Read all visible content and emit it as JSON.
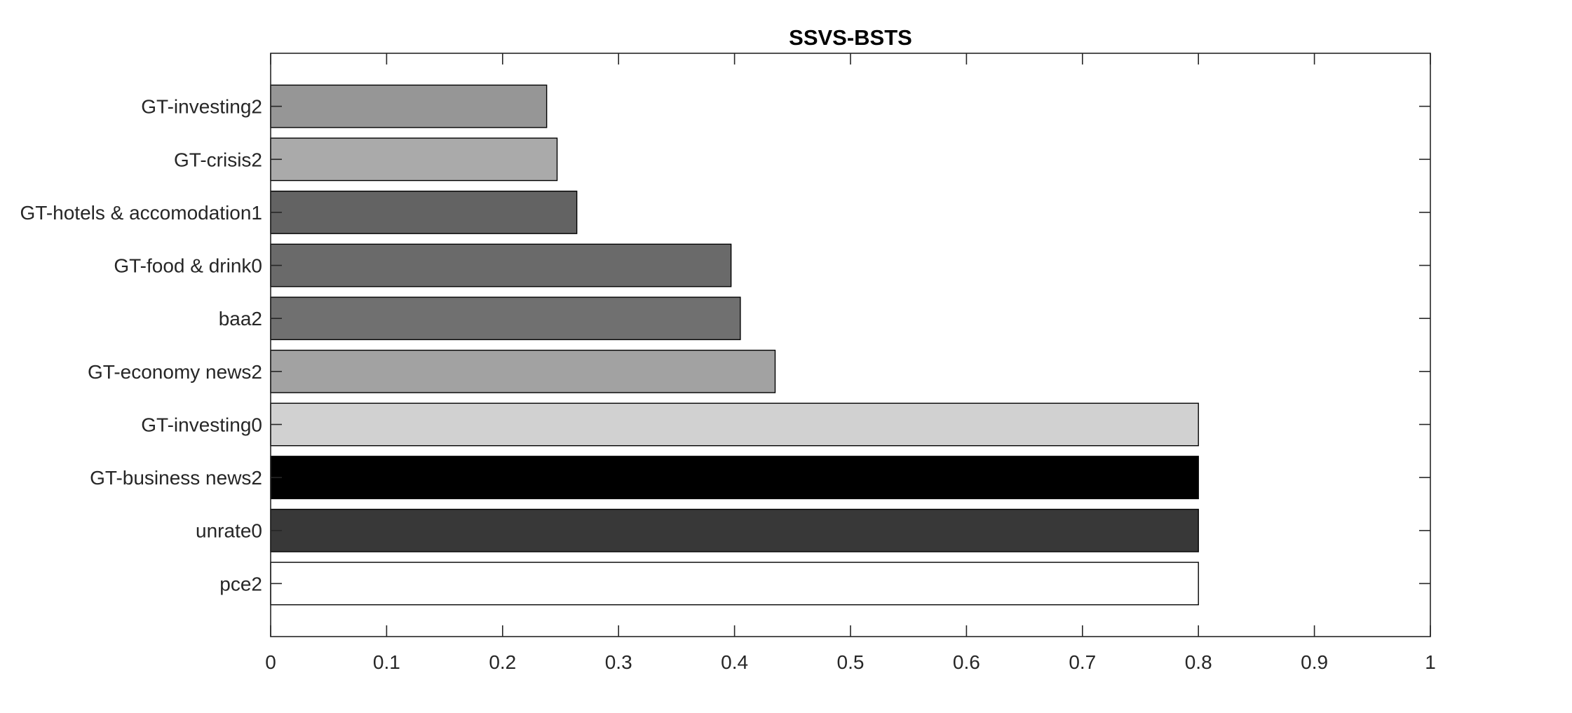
{
  "chart_data": {
    "type": "bar",
    "orientation": "horizontal",
    "title": "SSVS-BSTS",
    "xlabel": "",
    "ylabel": "",
    "xlim": [
      0,
      1
    ],
    "xticks": [
      0,
      0.1,
      0.2,
      0.3,
      0.4,
      0.5,
      0.6,
      0.7,
      0.8,
      0.9,
      1
    ],
    "xtick_labels": [
      "0",
      "0.1",
      "0.2",
      "0.3",
      "0.4",
      "0.5",
      "0.6",
      "0.7",
      "0.8",
      "0.9",
      "1"
    ],
    "grid": false,
    "categories": [
      "GT-investing2",
      "GT-crisis2",
      "GT-hotels & accomodation1",
      "GT-food & drink0",
      "baa2",
      "GT-economy news2",
      "GT-investing0",
      "GT-business news2",
      "unrate0",
      "pce2"
    ],
    "values": [
      0.238,
      0.247,
      0.264,
      0.397,
      0.405,
      0.435,
      0.8,
      0.8,
      0.8,
      0.8
    ],
    "bar_colors": [
      "#969696",
      "#aaaaaa",
      "#636363",
      "#6a6a6a",
      "#707070",
      "#a2a2a2",
      "#d1d1d1",
      "#000000",
      "#383838",
      "#ffffff"
    ]
  }
}
